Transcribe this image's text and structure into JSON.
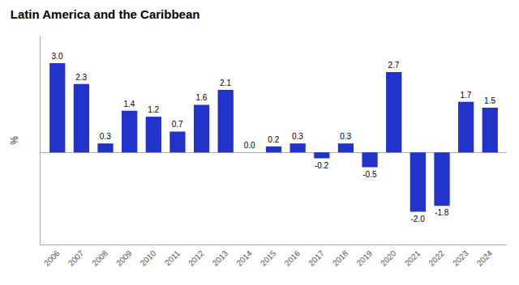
{
  "chart_data": {
    "type": "bar",
    "title": "Latin America and the Caribbean",
    "ylabel": "%",
    "categories": [
      "2006",
      "2007",
      "2008",
      "2009",
      "2010",
      "2011",
      "2012",
      "2013",
      "2014",
      "2015",
      "2016",
      "2017",
      "2018",
      "2019",
      "2020",
      "2021",
      "2022",
      "2023",
      "2024"
    ],
    "values": [
      3.0,
      2.3,
      0.3,
      1.4,
      1.2,
      0.7,
      1.6,
      2.1,
      0.0,
      0.2,
      0.3,
      -0.2,
      0.3,
      -0.5,
      2.7,
      -2.0,
      -1.8,
      1.7,
      1.5
    ],
    "value_labels": [
      "3.0",
      "2.3",
      "0.3",
      "1.4",
      "1.2",
      "0.7",
      "1.6",
      "2.1",
      "0.0",
      "0.2",
      "0.3",
      "-0.2",
      "0.3",
      "-0.5",
      "2.7",
      "-2.0",
      "-1.8",
      "1.7",
      "1.5"
    ],
    "data_labels": true,
    "color": "#2233CC",
    "ylim": [
      -3.1,
      3.9
    ],
    "tick_labels": "x",
    "grid": false
  }
}
